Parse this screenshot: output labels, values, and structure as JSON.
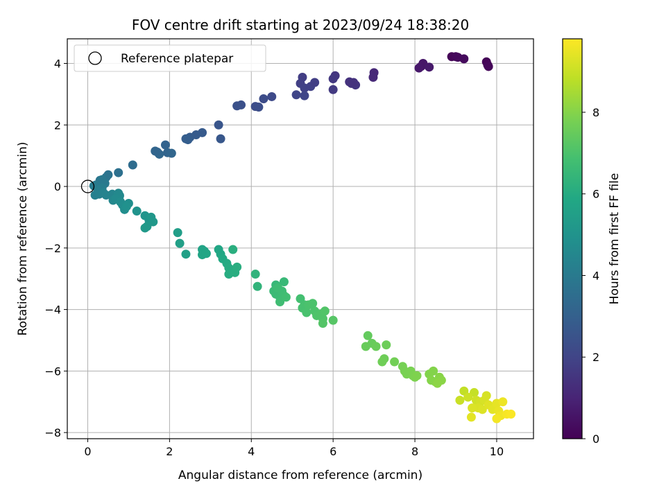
{
  "chart_data": {
    "type": "scatter",
    "title": "FOV centre drift starting at 2023/09/24 18:38:20",
    "xlabel": "Angular distance from reference (arcmin)",
    "ylabel": "Rotation from reference (arcmin)",
    "xlim": [
      -0.5,
      10.9
    ],
    "ylim": [
      -8.2,
      4.8
    ],
    "xticks": [
      0,
      2,
      4,
      6,
      8,
      10
    ],
    "yticks": [
      -8,
      -6,
      -4,
      -2,
      0,
      2,
      4
    ],
    "grid": true,
    "legend": {
      "placement": "upper-left",
      "entries": [
        "Reference platepar"
      ]
    },
    "reference_marker": {
      "x": 0,
      "y": 0,
      "label": "Reference platepar"
    },
    "colorbar": {
      "label": "Hours from first FF file",
      "range": [
        0,
        9.8
      ],
      "ticks": [
        0,
        2,
        4,
        6,
        8
      ],
      "colormap": "viridis"
    },
    "points": [
      {
        "x": 8.9,
        "y": 4.22,
        "t": 0.1
      },
      {
        "x": 9.0,
        "y": 4.22,
        "t": 0.15
      },
      {
        "x": 9.05,
        "y": 4.2,
        "t": 0.2
      },
      {
        "x": 9.2,
        "y": 4.15,
        "t": 0.25
      },
      {
        "x": 9.75,
        "y": 4.05,
        "t": 0.05
      },
      {
        "x": 9.78,
        "y": 3.95,
        "t": 0.1
      },
      {
        "x": 9.8,
        "y": 3.9,
        "t": 0.15
      },
      {
        "x": 8.15,
        "y": 3.9,
        "t": 0.55
      },
      {
        "x": 8.2,
        "y": 4.0,
        "t": 0.6
      },
      {
        "x": 8.1,
        "y": 3.85,
        "t": 0.65
      },
      {
        "x": 8.35,
        "y": 3.88,
        "t": 0.7
      },
      {
        "x": 7.0,
        "y": 3.7,
        "t": 1.1
      },
      {
        "x": 6.98,
        "y": 3.55,
        "t": 1.15
      },
      {
        "x": 6.4,
        "y": 3.4,
        "t": 1.4
      },
      {
        "x": 6.45,
        "y": 3.35,
        "t": 1.45
      },
      {
        "x": 6.55,
        "y": 3.3,
        "t": 1.5
      },
      {
        "x": 6.5,
        "y": 3.38,
        "t": 1.42
      },
      {
        "x": 6.05,
        "y": 3.6,
        "t": 1.55
      },
      {
        "x": 6.0,
        "y": 3.5,
        "t": 1.6
      },
      {
        "x": 6.0,
        "y": 3.15,
        "t": 1.65
      },
      {
        "x": 5.25,
        "y": 3.55,
        "t": 1.8
      },
      {
        "x": 5.2,
        "y": 3.35,
        "t": 1.85
      },
      {
        "x": 5.3,
        "y": 3.2,
        "t": 1.9
      },
      {
        "x": 5.45,
        "y": 3.25,
        "t": 1.88
      },
      {
        "x": 5.55,
        "y": 3.38,
        "t": 1.82
      },
      {
        "x": 5.1,
        "y": 2.98,
        "t": 2.0
      },
      {
        "x": 5.3,
        "y": 2.95,
        "t": 2.05
      },
      {
        "x": 4.5,
        "y": 2.92,
        "t": 2.2
      },
      {
        "x": 4.3,
        "y": 2.85,
        "t": 2.25
      },
      {
        "x": 4.1,
        "y": 2.6,
        "t": 2.3
      },
      {
        "x": 4.18,
        "y": 2.58,
        "t": 2.35
      },
      {
        "x": 3.75,
        "y": 2.65,
        "t": 2.4
      },
      {
        "x": 3.65,
        "y": 2.62,
        "t": 2.45
      },
      {
        "x": 3.2,
        "y": 2.0,
        "t": 2.6
      },
      {
        "x": 3.25,
        "y": 1.55,
        "t": 2.65
      },
      {
        "x": 2.8,
        "y": 1.75,
        "t": 2.75
      },
      {
        "x": 2.65,
        "y": 1.68,
        "t": 2.8
      },
      {
        "x": 2.5,
        "y": 1.6,
        "t": 2.85
      },
      {
        "x": 2.45,
        "y": 1.52,
        "t": 2.9
      },
      {
        "x": 2.4,
        "y": 1.55,
        "t": 2.92
      },
      {
        "x": 1.9,
        "y": 1.35,
        "t": 3.1
      },
      {
        "x": 1.95,
        "y": 1.1,
        "t": 3.15
      },
      {
        "x": 2.05,
        "y": 1.08,
        "t": 3.2
      },
      {
        "x": 1.75,
        "y": 1.05,
        "t": 3.25
      },
      {
        "x": 1.7,
        "y": 1.12,
        "t": 3.22
      },
      {
        "x": 1.65,
        "y": 1.15,
        "t": 3.18
      },
      {
        "x": 1.1,
        "y": 0.7,
        "t": 3.45
      },
      {
        "x": 0.75,
        "y": 0.45,
        "t": 3.6
      },
      {
        "x": 0.5,
        "y": 0.38,
        "t": 3.7
      },
      {
        "x": 0.45,
        "y": 0.3,
        "t": 3.75
      },
      {
        "x": 0.3,
        "y": 0.2,
        "t": 3.85
      },
      {
        "x": 0.35,
        "y": 0.22,
        "t": 3.9
      },
      {
        "x": 0.42,
        "y": 0.1,
        "t": 3.95
      },
      {
        "x": 0.2,
        "y": 0.05,
        "t": 4.0
      },
      {
        "x": 0.15,
        "y": 0.02,
        "t": 4.05
      },
      {
        "x": 0.35,
        "y": -0.05,
        "t": 4.1
      },
      {
        "x": 0.25,
        "y": -0.12,
        "t": 4.15
      },
      {
        "x": 0.18,
        "y": -0.28,
        "t": 4.2
      },
      {
        "x": 0.28,
        "y": -0.25,
        "t": 4.25
      },
      {
        "x": 0.38,
        "y": -0.2,
        "t": 4.3
      },
      {
        "x": 0.45,
        "y": -0.28,
        "t": 4.35
      },
      {
        "x": 0.6,
        "y": -0.25,
        "t": 4.4
      },
      {
        "x": 0.7,
        "y": -0.35,
        "t": 4.45
      },
      {
        "x": 0.62,
        "y": -0.45,
        "t": 4.5
      },
      {
        "x": 0.75,
        "y": -0.22,
        "t": 4.55
      },
      {
        "x": 0.78,
        "y": -0.3,
        "t": 4.6
      },
      {
        "x": 0.68,
        "y": -0.4,
        "t": 4.62
      },
      {
        "x": 0.8,
        "y": -0.5,
        "t": 4.7
      },
      {
        "x": 0.85,
        "y": -0.6,
        "t": 4.75
      },
      {
        "x": 0.9,
        "y": -0.75,
        "t": 4.8
      },
      {
        "x": 1.0,
        "y": -0.55,
        "t": 4.85
      },
      {
        "x": 0.95,
        "y": -0.65,
        "t": 4.9
      },
      {
        "x": 1.2,
        "y": -0.8,
        "t": 5.0
      },
      {
        "x": 1.4,
        "y": -0.95,
        "t": 5.05
      },
      {
        "x": 1.5,
        "y": -1.1,
        "t": 5.1
      },
      {
        "x": 1.55,
        "y": -1.0,
        "t": 5.15
      },
      {
        "x": 1.6,
        "y": -1.15,
        "t": 5.2
      },
      {
        "x": 1.45,
        "y": -1.3,
        "t": 5.22
      },
      {
        "x": 1.4,
        "y": -1.35,
        "t": 5.25
      },
      {
        "x": 2.2,
        "y": -1.5,
        "t": 5.45
      },
      {
        "x": 2.25,
        "y": -1.85,
        "t": 5.5
      },
      {
        "x": 2.4,
        "y": -2.2,
        "t": 5.55
      },
      {
        "x": 2.8,
        "y": -2.05,
        "t": 5.65
      },
      {
        "x": 2.85,
        "y": -2.1,
        "t": 5.7
      },
      {
        "x": 2.8,
        "y": -2.22,
        "t": 5.72
      },
      {
        "x": 2.9,
        "y": -2.18,
        "t": 5.75
      },
      {
        "x": 3.2,
        "y": -2.05,
        "t": 5.8
      },
      {
        "x": 3.25,
        "y": -2.2,
        "t": 5.85
      },
      {
        "x": 3.3,
        "y": -2.35,
        "t": 5.9
      },
      {
        "x": 3.4,
        "y": -2.5,
        "t": 5.95
      },
      {
        "x": 3.45,
        "y": -2.65,
        "t": 6.0
      },
      {
        "x": 3.5,
        "y": -2.75,
        "t": 6.02
      },
      {
        "x": 3.45,
        "y": -2.85,
        "t": 6.05
      },
      {
        "x": 3.6,
        "y": -2.8,
        "t": 6.08
      },
      {
        "x": 3.65,
        "y": -2.62,
        "t": 6.1
      },
      {
        "x": 3.55,
        "y": -2.05,
        "t": 6.12
      },
      {
        "x": 4.1,
        "y": -2.85,
        "t": 6.3
      },
      {
        "x": 4.15,
        "y": -3.25,
        "t": 6.35
      },
      {
        "x": 4.6,
        "y": -3.2,
        "t": 6.5
      },
      {
        "x": 4.8,
        "y": -3.1,
        "t": 6.55
      },
      {
        "x": 4.55,
        "y": -3.4,
        "t": 6.6
      },
      {
        "x": 4.6,
        "y": -3.5,
        "t": 6.62
      },
      {
        "x": 4.7,
        "y": -3.6,
        "t": 6.65
      },
      {
        "x": 4.75,
        "y": -3.4,
        "t": 6.68
      },
      {
        "x": 4.65,
        "y": -3.3,
        "t": 6.7
      },
      {
        "x": 4.8,
        "y": -3.55,
        "t": 6.72
      },
      {
        "x": 4.7,
        "y": -3.75,
        "t": 6.75
      },
      {
        "x": 4.85,
        "y": -3.6,
        "t": 6.78
      },
      {
        "x": 5.2,
        "y": -3.65,
        "t": 6.85
      },
      {
        "x": 5.3,
        "y": -3.85,
        "t": 6.9
      },
      {
        "x": 5.25,
        "y": -3.95,
        "t": 6.92
      },
      {
        "x": 5.35,
        "y": -4.1,
        "t": 6.95
      },
      {
        "x": 5.4,
        "y": -3.85,
        "t": 6.98
      },
      {
        "x": 5.5,
        "y": -3.8,
        "t": 7.0
      },
      {
        "x": 5.55,
        "y": -4.05,
        "t": 7.02
      },
      {
        "x": 5.6,
        "y": -4.2,
        "t": 7.05
      },
      {
        "x": 5.7,
        "y": -4.15,
        "t": 7.08
      },
      {
        "x": 5.75,
        "y": -4.3,
        "t": 7.1
      },
      {
        "x": 5.8,
        "y": -4.05,
        "t": 7.12
      },
      {
        "x": 5.75,
        "y": -4.45,
        "t": 7.15
      },
      {
        "x": 6.0,
        "y": -4.35,
        "t": 7.2
      },
      {
        "x": 6.85,
        "y": -4.85,
        "t": 7.45
      },
      {
        "x": 6.95,
        "y": -5.1,
        "t": 7.5
      },
      {
        "x": 6.8,
        "y": -5.2,
        "t": 7.52
      },
      {
        "x": 7.05,
        "y": -5.2,
        "t": 7.55
      },
      {
        "x": 7.3,
        "y": -5.15,
        "t": 7.6
      },
      {
        "x": 7.25,
        "y": -5.6,
        "t": 7.62
      },
      {
        "x": 7.2,
        "y": -5.7,
        "t": 7.65
      },
      {
        "x": 7.5,
        "y": -5.7,
        "t": 7.7
      },
      {
        "x": 7.7,
        "y": -5.85,
        "t": 7.75
      },
      {
        "x": 7.75,
        "y": -6.0,
        "t": 7.78
      },
      {
        "x": 7.8,
        "y": -6.1,
        "t": 7.8
      },
      {
        "x": 7.9,
        "y": -6.0,
        "t": 7.82
      },
      {
        "x": 7.95,
        "y": -6.15,
        "t": 7.85
      },
      {
        "x": 8.0,
        "y": -6.2,
        "t": 7.87
      },
      {
        "x": 8.05,
        "y": -6.15,
        "t": 7.9
      },
      {
        "x": 8.35,
        "y": -6.1,
        "t": 7.95
      },
      {
        "x": 8.45,
        "y": -6.0,
        "t": 7.98
      },
      {
        "x": 8.4,
        "y": -6.3,
        "t": 8.0
      },
      {
        "x": 8.5,
        "y": -6.35,
        "t": 8.02
      },
      {
        "x": 8.6,
        "y": -6.2,
        "t": 8.05
      },
      {
        "x": 8.65,
        "y": -6.3,
        "t": 8.08
      },
      {
        "x": 8.55,
        "y": -6.4,
        "t": 8.1
      },
      {
        "x": 9.2,
        "y": -6.65,
        "t": 8.9
      },
      {
        "x": 9.45,
        "y": -6.7,
        "t": 8.95
      },
      {
        "x": 9.1,
        "y": -6.95,
        "t": 9.0
      },
      {
        "x": 9.3,
        "y": -6.85,
        "t": 9.05
      },
      {
        "x": 9.5,
        "y": -6.95,
        "t": 9.1
      },
      {
        "x": 9.6,
        "y": -7.0,
        "t": 9.15
      },
      {
        "x": 9.75,
        "y": -6.8,
        "t": 9.2
      },
      {
        "x": 9.7,
        "y": -6.95,
        "t": 9.22
      },
      {
        "x": 9.55,
        "y": -7.2,
        "t": 9.25
      },
      {
        "x": 9.4,
        "y": -7.2,
        "t": 9.28
      },
      {
        "x": 9.65,
        "y": -7.25,
        "t": 9.3
      },
      {
        "x": 9.8,
        "y": -7.1,
        "t": 9.35
      },
      {
        "x": 9.9,
        "y": -7.25,
        "t": 9.4
      },
      {
        "x": 10.0,
        "y": -7.05,
        "t": 9.45
      },
      {
        "x": 10.05,
        "y": -7.3,
        "t": 9.5
      },
      {
        "x": 10.15,
        "y": -7.0,
        "t": 9.55
      },
      {
        "x": 10.1,
        "y": -7.45,
        "t": 9.6
      },
      {
        "x": 10.0,
        "y": -7.55,
        "t": 9.65
      },
      {
        "x": 10.25,
        "y": -7.4,
        "t": 9.7
      },
      {
        "x": 10.35,
        "y": -7.4,
        "t": 9.75
      },
      {
        "x": 9.38,
        "y": -7.5,
        "t": 9.4
      }
    ]
  }
}
